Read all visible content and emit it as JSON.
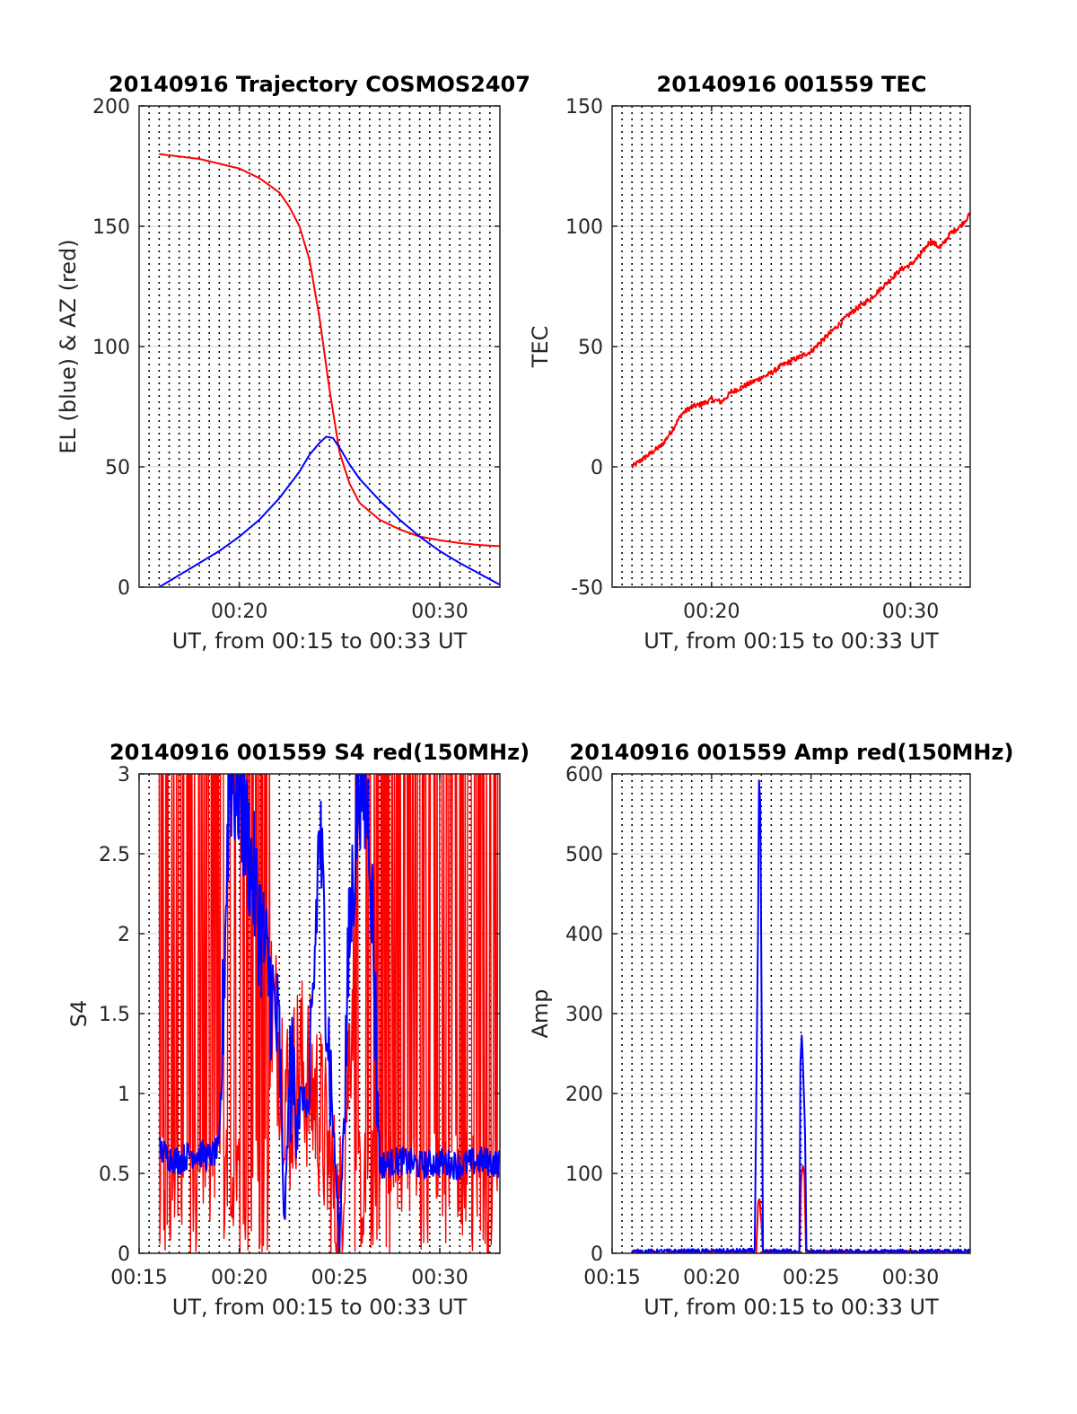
{
  "chart_data": [
    {
      "type": "line",
      "title": "20140916 Trajectory COSMOS2407",
      "xlabel": "UT, from 00:15 to 00:33 UT",
      "ylabel": "EL (blue) & AZ (red)",
      "xlim": [
        "00:15",
        "00:33"
      ],
      "ylim": [
        0,
        200
      ],
      "yticks": [
        "0",
        "50",
        "100",
        "150",
        "200"
      ],
      "xticks": [
        {
          "t": "00:20",
          "label": "00:20"
        },
        {
          "t": "00:30",
          "label": "00:30"
        }
      ],
      "grid": "dotted vertical lines every 30 s, light horizontal lines",
      "series": [
        {
          "color": "#ff0000",
          "points": [
            [
              "00:16",
              "180"
            ],
            [
              "00:18",
              "178"
            ],
            [
              "00:20",
              "174"
            ],
            [
              "00:21",
              "170"
            ],
            [
              "00:22",
              "164"
            ],
            [
              "00:22:30",
              "158"
            ],
            [
              "00:23",
              "150"
            ],
            [
              "00:23:30",
              "136"
            ],
            [
              "00:24",
              "112"
            ],
            [
              "00:24:30",
              "82"
            ],
            [
              "00:25",
              "56"
            ],
            [
              "00:25:30",
              "43"
            ],
            [
              "00:26",
              "35"
            ],
            [
              "00:27",
              "28"
            ],
            [
              "00:28",
              "24"
            ],
            [
              "00:29",
              "21"
            ],
            [
              "00:30",
              "19.5"
            ],
            [
              "00:31",
              "18.3"
            ],
            [
              "00:32",
              "17.5"
            ],
            [
              "00:33",
              "17"
            ]
          ]
        },
        {
          "color": "#0000ff",
          "points": [
            [
              "00:16",
              "0"
            ],
            [
              "00:17",
              "5"
            ],
            [
              "00:18",
              "10"
            ],
            [
              "00:19",
              "15"
            ],
            [
              "00:20",
              "21"
            ],
            [
              "00:21",
              "28"
            ],
            [
              "00:22",
              "37"
            ],
            [
              "00:23",
              "48"
            ],
            [
              "00:23:30",
              "55"
            ],
            [
              "00:24",
              "60"
            ],
            [
              "00:24:20",
              "62.5"
            ],
            [
              "00:24:40",
              "62"
            ],
            [
              "00:25",
              "58"
            ],
            [
              "00:25:30",
              "51"
            ],
            [
              "00:26",
              "45"
            ],
            [
              "00:27",
              "36"
            ],
            [
              "00:28",
              "28"
            ],
            [
              "00:29",
              "21"
            ],
            [
              "00:30",
              "15"
            ],
            [
              "00:31",
              "10"
            ],
            [
              "00:32",
              "5.5"
            ],
            [
              "00:33",
              "1"
            ]
          ]
        }
      ]
    },
    {
      "type": "line",
      "title": "20140916 001559 TEC",
      "xlabel": "UT, from 00:15 to 00:33 UT",
      "ylabel": "TEC",
      "xlim": [
        "00:15",
        "00:33"
      ],
      "ylim": [
        -50,
        150
      ],
      "yticks": [
        "-50",
        "0",
        "50",
        "100",
        "150"
      ],
      "xticks": [
        {
          "t": "00:20",
          "label": "00:20"
        },
        {
          "t": "00:30",
          "label": "00:30"
        }
      ],
      "grid": "dotted vertical lines every 30 s, light horizontal lines",
      "series": [
        {
          "color": "#ff0000",
          "points": [
            [
              "00:16",
              "0"
            ],
            [
              "00:16:30",
              "3"
            ],
            [
              "00:17",
              "6"
            ],
            [
              "00:17:30",
              "9"
            ],
            [
              "00:18",
              "15"
            ],
            [
              "00:18:30",
              "22"
            ],
            [
              "00:19",
              "25"
            ],
            [
              "00:19:30",
              "26"
            ],
            [
              "00:20",
              "28"
            ],
            [
              "00:20:30",
              "27"
            ],
            [
              "00:21",
              "31"
            ],
            [
              "00:21:30",
              "33"
            ],
            [
              "00:22",
              "35"
            ],
            [
              "00:22:30",
              "37"
            ],
            [
              "00:23",
              "39"
            ],
            [
              "00:23:30",
              "42"
            ],
            [
              "00:24",
              "44"
            ],
            [
              "00:24:30",
              "46"
            ],
            [
              "00:25",
              "48"
            ],
            [
              "00:25:30",
              "52"
            ],
            [
              "00:26",
              "56"
            ],
            [
              "00:26:30",
              "60"
            ],
            [
              "00:27",
              "64"
            ],
            [
              "00:27:30",
              "67"
            ],
            [
              "00:28",
              "70"
            ],
            [
              "00:28:30",
              "74"
            ],
            [
              "00:29",
              "78"
            ],
            [
              "00:29:30",
              "82"
            ],
            [
              "00:30",
              "84"
            ],
            [
              "00:30:30",
              "88"
            ],
            [
              "00:31",
              "94"
            ],
            [
              "00:31:30",
              "91"
            ],
            [
              "00:32",
              "97"
            ],
            [
              "00:32:30",
              "100"
            ],
            [
              "00:33",
              "105"
            ]
          ]
        }
      ]
    },
    {
      "type": "line",
      "title": "20140916 001559 S4 red(150MHz)",
      "xlabel": "UT, from 00:15 to 00:33 UT",
      "ylabel": "S4",
      "xlim": [
        "00:15",
        "00:33"
      ],
      "ylim": [
        0,
        3
      ],
      "yticks": [
        "0",
        "0.5",
        "1",
        "1.5",
        "2",
        "2.5",
        "3"
      ],
      "xticks": [
        {
          "t": "00:15",
          "label": "00:15"
        },
        {
          "t": "00:20",
          "label": "00:20"
        },
        {
          "t": "00:25",
          "label": "00:25"
        },
        {
          "t": "00:30",
          "label": "00:30"
        }
      ],
      "grid": "dotted vertical lines every 30 s, light horizontal lines",
      "series": [
        {
          "color": "#ff0000",
          "noise": "dense oscillation between 0 and above 3 over most of the range",
          "points": [
            [
              "00:16",
              "3"
            ],
            [
              "00:19",
              "3"
            ],
            [
              "00:20",
              "2.6"
            ],
            [
              "00:21",
              "1.9"
            ],
            [
              "00:22",
              "1.3"
            ],
            [
              "00:22:30",
              "0.9"
            ],
            [
              "00:23",
              "1.2"
            ],
            [
              "00:24",
              "0.9"
            ],
            [
              "00:25",
              "0.15"
            ],
            [
              "00:26",
              "2.5"
            ],
            [
              "00:27",
              "3"
            ],
            [
              "00:33",
              "3"
            ]
          ]
        },
        {
          "color": "#0000ff",
          "points": [
            [
              "00:16",
              "0.65"
            ],
            [
              "00:16:30",
              "0.6"
            ],
            [
              "00:17",
              "0.58"
            ],
            [
              "00:17:30",
              "0.62"
            ],
            [
              "00:18",
              "0.63"
            ],
            [
              "00:18:30",
              "0.6"
            ],
            [
              "00:19",
              "0.65"
            ],
            [
              "00:19:30",
              "3"
            ],
            [
              "00:20",
              "2.9"
            ],
            [
              "00:20:30",
              "2.5"
            ],
            [
              "00:21",
              "2.1"
            ],
            [
              "00:21:30",
              "1.7"
            ],
            [
              "00:22",
              "1.3"
            ],
            [
              "00:22:15",
              "0.15"
            ],
            [
              "00:22:30",
              "1.1"
            ],
            [
              "00:23",
              "1.0"
            ],
            [
              "00:23:30",
              "0.9"
            ],
            [
              "00:24",
              "2.7"
            ],
            [
              "00:24:30",
              "1.2"
            ],
            [
              "00:25",
              "0.08"
            ],
            [
              "00:25:15",
              "1.0"
            ],
            [
              "00:25:30",
              "2.0"
            ],
            [
              "00:26",
              "3"
            ],
            [
              "00:26:30",
              "2.7"
            ],
            [
              "00:27",
              "0.55"
            ],
            [
              "00:28",
              "0.58"
            ],
            [
              "00:29",
              "0.55"
            ],
            [
              "00:30",
              "0.57"
            ],
            [
              "00:31",
              "0.55"
            ],
            [
              "00:32",
              "0.58"
            ],
            [
              "00:33",
              "0.56"
            ]
          ]
        }
      ]
    },
    {
      "type": "line",
      "title": "20140916 001559 Amp red(150MHz)",
      "xlabel": "UT, from 00:15 to 00:33 UT",
      "ylabel": "Amp",
      "xlim": [
        "00:15",
        "00:33"
      ],
      "ylim": [
        0,
        600
      ],
      "yticks": [
        "0",
        "100",
        "200",
        "300",
        "400",
        "500",
        "600"
      ],
      "xticks": [
        {
          "t": "00:15",
          "label": "00:15"
        },
        {
          "t": "00:20",
          "label": "00:20"
        },
        {
          "t": "00:25",
          "label": "00:25"
        },
        {
          "t": "00:30",
          "label": "00:30"
        }
      ],
      "grid": "dotted vertical lines every 30 s, light horizontal lines",
      "series": [
        {
          "color": "#ff0000",
          "points": [
            [
              "00:16",
              "1"
            ],
            [
              "00:22:15",
              "1"
            ],
            [
              "00:22:20",
              "60"
            ],
            [
              "00:22:25",
              "70"
            ],
            [
              "00:22:30",
              "40"
            ],
            [
              "00:22:35",
              "1"
            ],
            [
              "00:24:25",
              "1"
            ],
            [
              "00:24:30",
              "90"
            ],
            [
              "00:24:35",
              "110"
            ],
            [
              "00:24:40",
              "100"
            ],
            [
              "00:24:45",
              "1"
            ],
            [
              "00:33",
              "1"
            ]
          ]
        },
        {
          "color": "#0000ff",
          "points": [
            [
              "00:16",
              "2"
            ],
            [
              "00:22:10",
              "3"
            ],
            [
              "00:22:15",
              "200"
            ],
            [
              "00:22:20",
              "400"
            ],
            [
              "00:22:23",
              "590"
            ],
            [
              "00:22:27",
              "560"
            ],
            [
              "00:22:31",
              "300"
            ],
            [
              "00:22:35",
              "2"
            ],
            [
              "00:24:25",
              "3"
            ],
            [
              "00:24:28",
              "240"
            ],
            [
              "00:24:32",
              "275"
            ],
            [
              "00:24:36",
              "230"
            ],
            [
              "00:24:42",
              "150"
            ],
            [
              "00:24:46",
              "2"
            ],
            [
              "00:33",
              "2"
            ]
          ]
        }
      ]
    }
  ]
}
